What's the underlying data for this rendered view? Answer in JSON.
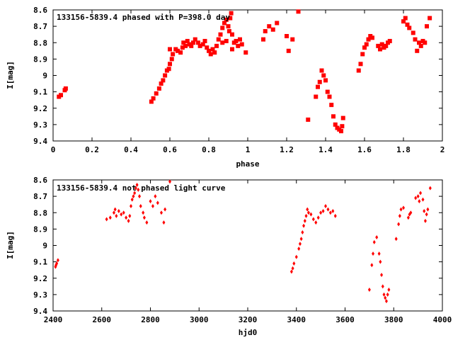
{
  "chart_data": [
    {
      "type": "scatter",
      "title": "133156-5839.4 phased with P=398.0 day",
      "xlabel": "phase",
      "ylabel": "I[mag]",
      "xlim": [
        0,
        2
      ],
      "ylim": [
        9.4,
        8.6
      ],
      "y_inverted": true,
      "grid": false,
      "marker_color": "#ff0000",
      "marker": "filled-square-cross",
      "x_ticks": [
        "0",
        "0.2",
        "0.4",
        "0.6",
        "0.8",
        "1",
        "1.2",
        "1.4",
        "1.6",
        "1.8",
        "2"
      ],
      "y_ticks": [
        "8.6",
        "8.7",
        "8.8",
        "8.9",
        "9",
        "9.1",
        "9.2",
        "9.3",
        "9.4"
      ],
      "series": [
        {
          "points": [
            [
              0.03,
              9.13
            ],
            [
              0.04,
              9.12
            ],
            [
              0.06,
              9.09
            ],
            [
              0.065,
              9.08
            ],
            [
              0.505,
              9.16
            ],
            [
              0.515,
              9.14
            ],
            [
              0.53,
              9.11
            ],
            [
              0.545,
              9.08
            ],
            [
              0.555,
              9.05
            ],
            [
              0.565,
              9.03
            ],
            [
              0.575,
              9.0
            ],
            [
              0.585,
              8.97
            ],
            [
              0.595,
              8.96
            ],
            [
              0.6,
              8.93
            ],
            [
              0.61,
              8.9
            ],
            [
              0.615,
              8.87
            ],
            [
              0.6,
              8.84
            ],
            [
              0.63,
              8.84
            ],
            [
              0.64,
              8.85
            ],
            [
              0.655,
              8.86
            ],
            [
              0.665,
              8.83
            ],
            [
              0.67,
              8.8
            ],
            [
              0.68,
              8.82
            ],
            [
              0.69,
              8.79
            ],
            [
              0.7,
              8.81
            ],
            [
              0.71,
              8.82
            ],
            [
              0.72,
              8.8
            ],
            [
              0.73,
              8.78
            ],
            [
              0.745,
              8.8
            ],
            [
              0.755,
              8.82
            ],
            [
              0.77,
              8.81
            ],
            [
              0.78,
              8.79
            ],
            [
              0.79,
              8.83
            ],
            [
              0.8,
              8.85
            ],
            [
              0.81,
              8.87
            ],
            [
              0.82,
              8.84
            ],
            [
              0.83,
              8.86
            ],
            [
              0.84,
              8.82
            ],
            [
              0.85,
              8.78
            ],
            [
              0.86,
              8.75
            ],
            [
              0.87,
              8.71
            ],
            [
              0.88,
              8.68
            ],
            [
              0.89,
              8.66
            ],
            [
              0.9,
              8.7
            ],
            [
              0.905,
              8.73
            ],
            [
              0.91,
              8.65
            ],
            [
              0.915,
              8.62
            ],
            [
              0.92,
              8.75
            ],
            [
              0.93,
              8.8
            ],
            [
              0.94,
              8.79
            ],
            [
              0.95,
              8.82
            ],
            [
              0.96,
              8.78
            ],
            [
              0.97,
              8.81
            ],
            [
              0.99,
              8.86
            ],
            [
              0.87,
              8.8
            ],
            [
              0.89,
              8.79
            ],
            [
              0.92,
              8.84
            ],
            [
              1.08,
              8.78
            ],
            [
              1.09,
              8.73
            ],
            [
              1.11,
              8.7
            ],
            [
              1.13,
              8.72
            ],
            [
              1.15,
              8.68
            ],
            [
              1.2,
              8.76
            ],
            [
              1.21,
              8.85
            ],
            [
              1.23,
              8.78
            ],
            [
              1.26,
              8.61
            ],
            [
              1.31,
              9.27
            ],
            [
              1.35,
              9.13
            ],
            [
              1.36,
              9.07
            ],
            [
              1.37,
              9.04
            ],
            [
              1.38,
              8.97
            ],
            [
              1.39,
              9.0
            ],
            [
              1.4,
              9.03
            ],
            [
              1.41,
              9.1
            ],
            [
              1.42,
              9.13
            ],
            [
              1.43,
              9.18
            ],
            [
              1.44,
              9.25
            ],
            [
              1.45,
              9.3
            ],
            [
              1.46,
              9.32
            ],
            [
              1.47,
              9.33
            ],
            [
              1.48,
              9.34
            ],
            [
              1.49,
              9.26
            ],
            [
              1.485,
              9.31
            ],
            [
              1.57,
              8.97
            ],
            [
              1.58,
              8.93
            ],
            [
              1.59,
              8.87
            ],
            [
              1.6,
              8.83
            ],
            [
              1.61,
              8.81
            ],
            [
              1.62,
              8.78
            ],
            [
              1.63,
              8.76
            ],
            [
              1.64,
              8.77
            ],
            [
              1.67,
              8.82
            ],
            [
              1.68,
              8.84
            ],
            [
              1.69,
              8.81
            ],
            [
              1.7,
              8.83
            ],
            [
              1.71,
              8.82
            ],
            [
              1.72,
              8.8
            ],
            [
              1.73,
              8.79
            ],
            [
              1.8,
              8.67
            ],
            [
              1.81,
              8.65
            ],
            [
              1.82,
              8.69
            ],
            [
              1.83,
              8.71
            ],
            [
              1.85,
              8.74
            ],
            [
              1.86,
              8.78
            ],
            [
              1.87,
              8.85
            ],
            [
              1.88,
              8.8
            ],
            [
              1.89,
              8.82
            ],
            [
              1.9,
              8.79
            ],
            [
              1.91,
              8.8
            ],
            [
              1.92,
              8.7
            ],
            [
              1.935,
              8.65
            ]
          ]
        }
      ]
    },
    {
      "type": "scatter",
      "title": "133156-5839.4 not phased light curve",
      "xlabel": "hjd0",
      "ylabel": "I[mag]",
      "xlim": [
        2400,
        4000
      ],
      "ylim": [
        9.4,
        8.6
      ],
      "y_inverted": true,
      "grid": false,
      "marker_color": "#ff0000",
      "marker": "small-diamond",
      "x_ticks": [
        "2400",
        "2600",
        "2800",
        "3000",
        "3200",
        "3400",
        "3600",
        "3800",
        "4000"
      ],
      "y_ticks": [
        "8.6",
        "8.7",
        "8.8",
        "8.9",
        "9",
        "9.1",
        "9.2",
        "9.3",
        "9.4"
      ],
      "series": [
        {
          "points": [
            [
              2410,
              9.13
            ],
            [
              2415,
              9.11
            ],
            [
              2420,
              9.09
            ],
            [
              2412,
              9.12
            ],
            [
              2620,
              8.84
            ],
            [
              2635,
              8.83
            ],
            [
              2650,
              8.8
            ],
            [
              2655,
              8.78
            ],
            [
              2660,
              8.82
            ],
            [
              2670,
              8.79
            ],
            [
              2680,
              8.81
            ],
            [
              2690,
              8.8
            ],
            [
              2700,
              8.83
            ],
            [
              2710,
              8.85
            ],
            [
              2715,
              8.82
            ],
            [
              2720,
              8.76
            ],
            [
              2725,
              8.72
            ],
            [
              2730,
              8.7
            ],
            [
              2735,
              8.68
            ],
            [
              2740,
              8.65
            ],
            [
              2745,
              8.63
            ],
            [
              2750,
              8.66
            ],
            [
              2755,
              8.7
            ],
            [
              2760,
              8.76
            ],
            [
              2770,
              8.8
            ],
            [
              2775,
              8.83
            ],
            [
              2785,
              8.86
            ],
            [
              2800,
              8.73
            ],
            [
              2810,
              8.76
            ],
            [
              2820,
              8.7
            ],
            [
              2830,
              8.74
            ],
            [
              2845,
              8.8
            ],
            [
              2855,
              8.86
            ],
            [
              2860,
              8.78
            ],
            [
              2880,
              8.61
            ],
            [
              3380,
              9.16
            ],
            [
              3385,
              9.14
            ],
            [
              3390,
              9.11
            ],
            [
              3400,
              9.07
            ],
            [
              3410,
              9.02
            ],
            [
              3415,
              8.99
            ],
            [
              3420,
              8.96
            ],
            [
              3425,
              8.92
            ],
            [
              3430,
              8.88
            ],
            [
              3435,
              8.85
            ],
            [
              3440,
              8.82
            ],
            [
              3445,
              8.78
            ],
            [
              3450,
              8.8
            ],
            [
              3460,
              8.81
            ],
            [
              3470,
              8.84
            ],
            [
              3480,
              8.86
            ],
            [
              3490,
              8.83
            ],
            [
              3500,
              8.8
            ],
            [
              3510,
              8.79
            ],
            [
              3520,
              8.76
            ],
            [
              3530,
              8.78
            ],
            [
              3540,
              8.8
            ],
            [
              3550,
              8.79
            ],
            [
              3560,
              8.82
            ],
            [
              3700,
              9.27
            ],
            [
              3710,
              9.12
            ],
            [
              3715,
              9.05
            ],
            [
              3720,
              8.98
            ],
            [
              3730,
              8.95
            ],
            [
              3740,
              9.05
            ],
            [
              3745,
              9.1
            ],
            [
              3750,
              9.18
            ],
            [
              3755,
              9.25
            ],
            [
              3760,
              9.3
            ],
            [
              3765,
              9.32
            ],
            [
              3770,
              9.34
            ],
            [
              3775,
              9.3
            ],
            [
              3780,
              9.27
            ],
            [
              3810,
              8.96
            ],
            [
              3820,
              8.87
            ],
            [
              3825,
              8.82
            ],
            [
              3830,
              8.78
            ],
            [
              3840,
              8.77
            ],
            [
              3860,
              8.83
            ],
            [
              3865,
              8.81
            ],
            [
              3870,
              8.8
            ],
            [
              3890,
              8.71
            ],
            [
              3900,
              8.7
            ],
            [
              3905,
              8.73
            ],
            [
              3910,
              8.68
            ],
            [
              3920,
              8.72
            ],
            [
              3925,
              8.79
            ],
            [
              3930,
              8.85
            ],
            [
              3935,
              8.81
            ],
            [
              3940,
              8.78
            ],
            [
              3950,
              8.65
            ]
          ]
        }
      ]
    }
  ]
}
